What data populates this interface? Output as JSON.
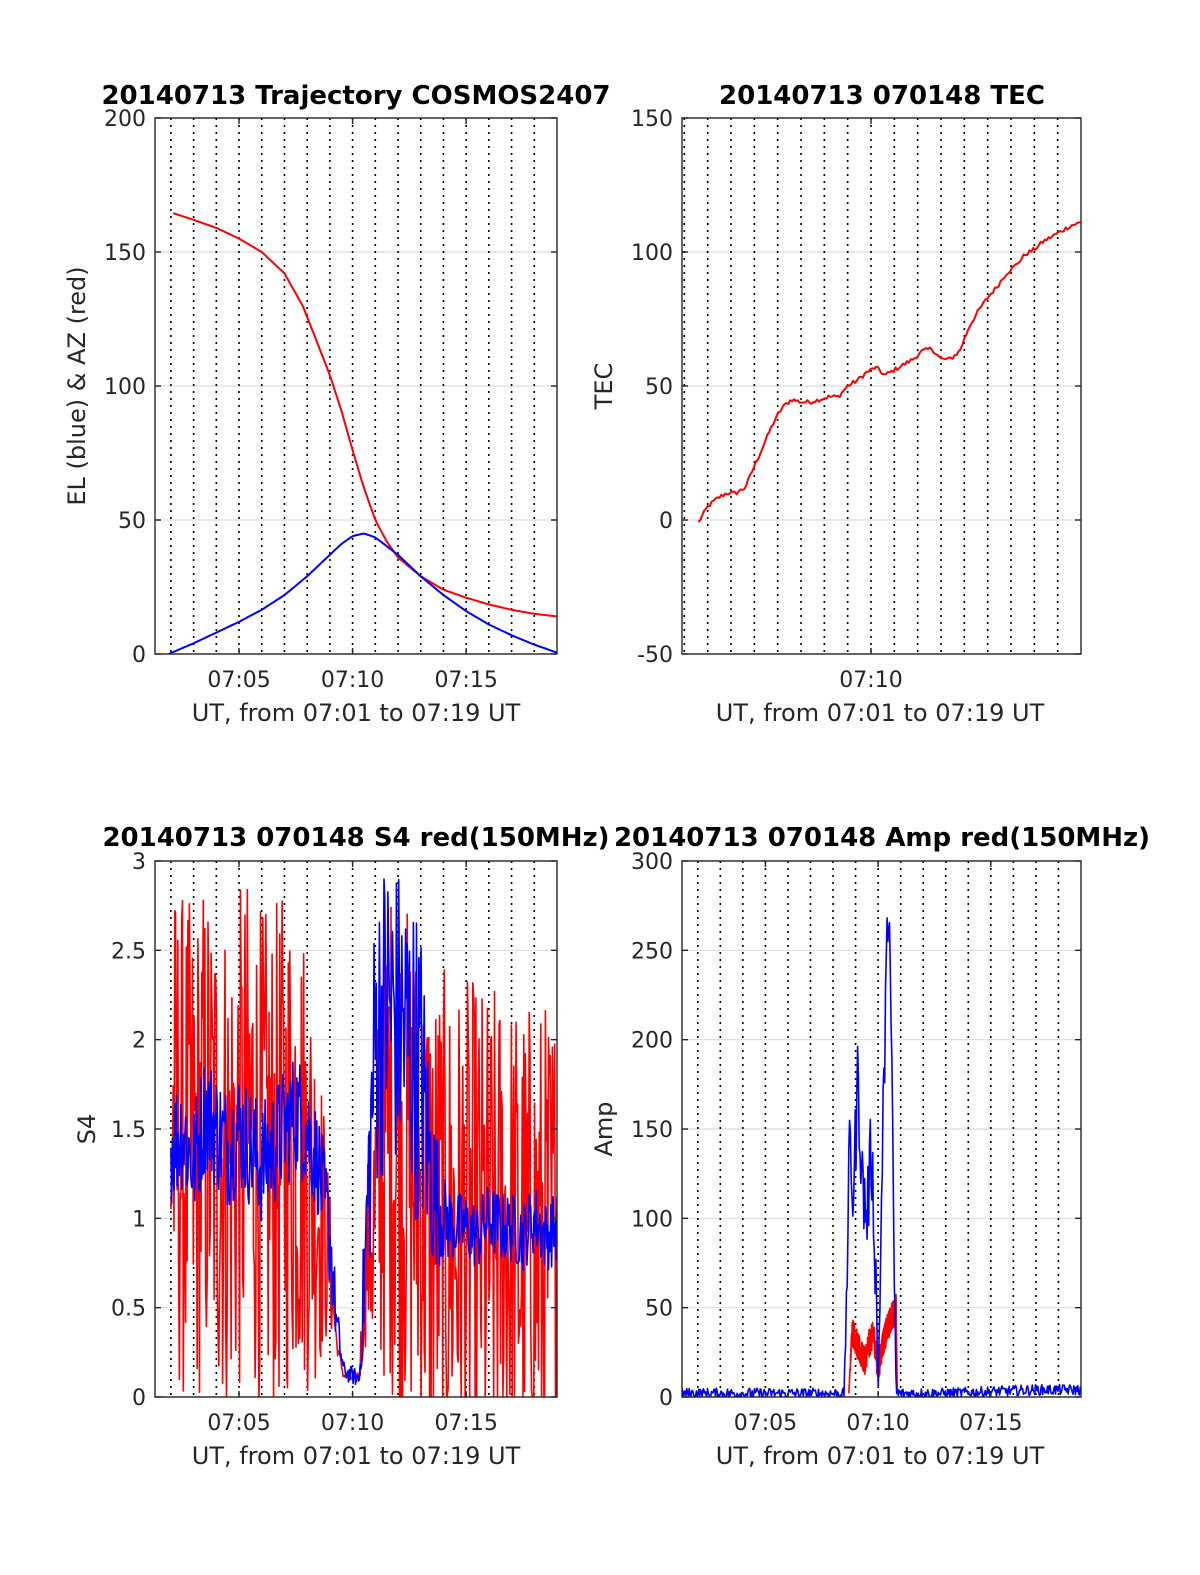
{
  "figure": {
    "background": "#ffffff",
    "grid_color": "#dcdcdc",
    "vline_style": "black-dotted",
    "colors": {
      "red": "#ff0000",
      "blue": "#0000ff"
    }
  },
  "chart_data": [
    {
      "type": "line",
      "title": "20140713 Trajectory COSMOS2407",
      "xlabel": "UT, from 07:01 to 07:19 UT",
      "ylabel": "EL (blue) & AZ (red)",
      "xlim": [
        1.3,
        19.0
      ],
      "ylim": [
        0,
        200
      ],
      "xticks": [
        5,
        10,
        15
      ],
      "xtick_labels": [
        "07:05",
        "07:10",
        "07:15"
      ],
      "yticks": [
        0,
        50,
        100,
        150,
        200
      ],
      "ytick_labels": [
        "0",
        "50",
        "100",
        "150",
        "200"
      ],
      "vlines_every_minute": [
        2,
        18
      ],
      "series": [
        {
          "color": "#ff0000",
          "x": [
            2.1,
            3,
            4,
            5,
            6,
            7,
            7.8,
            8.5,
            9,
            9.5,
            10,
            10.5,
            11,
            11.5,
            12,
            13,
            14,
            15,
            16,
            17,
            18,
            19
          ],
          "y": [
            164.5,
            162,
            159,
            155,
            150,
            142,
            130,
            115,
            104,
            91,
            76,
            62,
            50,
            42,
            36,
            29,
            24,
            21,
            18.5,
            16.5,
            15,
            14
          ]
        },
        {
          "color": "#0000ff",
          "x": [
            1.9,
            3,
            4,
            5,
            6,
            7,
            8,
            9,
            9.5,
            10,
            10.5,
            11,
            12,
            13,
            14,
            15,
            16,
            17,
            18,
            19
          ],
          "y": [
            0,
            4,
            8,
            12,
            16.5,
            22,
            29,
            37,
            41,
            44,
            45,
            43.5,
            37,
            29,
            22,
            16,
            11,
            7,
            3.5,
            0.5
          ]
        }
      ]
    },
    {
      "type": "line",
      "title": "20140713 070148 TEC",
      "xlabel": "UT, from 07:01 to 07:19 UT",
      "ylabel": "TEC",
      "xlim": [
        1.9,
        19.0
      ],
      "ylim": [
        -50,
        150
      ],
      "xticks": [
        10
      ],
      "xtick_labels": [
        "07:10"
      ],
      "yticks": [
        -50,
        0,
        50,
        100,
        150
      ],
      "ytick_labels": [
        "-50",
        "0",
        "50",
        "100",
        "150"
      ],
      "vlines_every_minute": [
        2,
        18
      ],
      "series": [
        {
          "color": "#ff0000",
          "x": [
            2.6,
            3,
            3.4,
            3.8,
            4.2,
            4.6,
            5,
            5.4,
            5.8,
            6.2,
            6.6,
            7,
            7.4,
            7.8,
            8.2,
            8.6,
            9,
            9.4,
            9.8,
            10.2,
            10.6,
            11,
            11.4,
            11.8,
            12.2,
            12.6,
            13,
            13.4,
            13.8,
            14.2,
            14.6,
            15,
            15.4,
            15.8,
            16.2,
            16.6,
            17,
            17.4,
            17.8,
            18.2,
            18.6,
            19
          ],
          "y": [
            -1,
            5,
            8,
            10,
            10,
            12,
            20,
            28,
            36,
            42,
            45,
            44,
            44,
            45,
            46,
            46,
            50,
            52,
            55,
            57,
            54,
            56,
            58,
            60,
            63,
            64,
            60,
            60,
            63,
            72,
            78,
            83,
            87,
            92,
            95,
            99,
            101,
            104,
            106,
            108,
            110,
            111
          ]
        }
      ]
    },
    {
      "type": "line",
      "title": "20140713 070148 S4 red(150MHz)",
      "xlabel": "UT, from 07:01 to 07:19 UT",
      "ylabel": "S4",
      "xlim": [
        1.3,
        19.0
      ],
      "ylim": [
        0,
        3
      ],
      "xticks": [
        5,
        10,
        15
      ],
      "xtick_labels": [
        "07:05",
        "07:10",
        "07:15"
      ],
      "yticks": [
        0,
        0.5,
        1,
        1.5,
        2,
        2.5,
        3
      ],
      "ytick_labels": [
        "0",
        "0.5",
        "1",
        "1.5",
        "2",
        "2.5",
        "3"
      ],
      "vlines_every_minute": [
        2,
        18
      ],
      "series": [
        {
          "color": "#ff0000",
          "x": [
            2.0,
            2.5,
            3,
            3.5,
            4,
            4.5,
            5,
            5.5,
            6,
            6.5,
            7,
            7.5,
            8,
            8.5,
            9.0,
            9.3,
            9.6,
            9.8,
            10.0,
            10.3,
            10.6,
            11.0,
            11.5,
            12,
            12.5,
            13,
            13.5,
            14,
            14.5,
            15,
            15.5,
            16,
            16.5,
            17,
            17.5,
            18,
            18.5,
            19.0
          ],
          "y": [
            1.5,
            1.4,
            1.3,
            1.5,
            1.4,
            1.3,
            1.4,
            1.5,
            1.3,
            1.3,
            1.4,
            1.5,
            1.3,
            1.1,
            0.75,
            0.3,
            0.12,
            0.12,
            0.1,
            0.12,
            0.8,
            1.0,
            1.5,
            1.4,
            1.3,
            1.1,
            1.0,
            0.95,
            0.9,
            0.9,
            0.9,
            0.85,
            0.9,
            0.85,
            0.8,
            0.8,
            0.8,
            0.85
          ],
          "noise": [
            1.45,
            1.45,
            1.45,
            1.45,
            1.45,
            1.45,
            1.45,
            1.45,
            1.45,
            1.45,
            1.45,
            1.45,
            1.3,
            1.0,
            0.4,
            0.05,
            0.02,
            0.02,
            0.02,
            0.05,
            0.5,
            1.0,
            1.45,
            1.45,
            1.45,
            1.45,
            1.45,
            1.45,
            1.45,
            1.45,
            1.45,
            1.45,
            1.45,
            1.45,
            1.45,
            1.45,
            1.45,
            1.45
          ]
        },
        {
          "color": "#0000ff",
          "x": [
            2.0,
            2.5,
            3,
            3.5,
            4,
            4.5,
            5,
            5.5,
            6,
            6.5,
            7,
            7.5,
            8,
            8.5,
            9.0,
            9.3,
            9.6,
            9.8,
            10.0,
            10.3,
            10.6,
            11.0,
            11.5,
            12,
            12.5,
            13,
            13.5,
            14,
            14.5,
            15,
            15.5,
            16,
            16.5,
            17,
            17.5,
            18,
            18.5,
            19.0
          ],
          "y": [
            1.4,
            1.5,
            1.3,
            1.6,
            1.5,
            1.4,
            1.5,
            1.4,
            1.3,
            1.4,
            1.5,
            1.6,
            1.5,
            1.3,
            0.9,
            0.4,
            0.15,
            0.13,
            0.12,
            0.1,
            0.9,
            2.0,
            2.2,
            2.1,
            2.0,
            1.8,
            1.2,
            1.0,
            0.95,
            0.95,
            0.9,
            1.0,
            0.95,
            0.95,
            0.9,
            1.0,
            0.9,
            0.95
          ],
          "noise": [
            0.35,
            0.35,
            0.35,
            0.35,
            0.35,
            0.35,
            0.35,
            0.35,
            0.35,
            0.35,
            0.35,
            0.35,
            0.35,
            0.3,
            0.3,
            0.15,
            0.05,
            0.05,
            0.05,
            0.05,
            0.5,
            0.9,
            0.9,
            0.9,
            0.9,
            0.9,
            0.5,
            0.25,
            0.2,
            0.2,
            0.2,
            0.2,
            0.2,
            0.2,
            0.2,
            0.2,
            0.2,
            0.2
          ]
        }
      ]
    },
    {
      "type": "line",
      "title": "20140713 070148 Amp red(150MHz)",
      "xlabel": "UT, from 07:01 to 07:19 UT",
      "ylabel": "Amp",
      "xlim": [
        1.3,
        19.0
      ],
      "ylim": [
        0,
        300
      ],
      "xticks": [
        5,
        10,
        15
      ],
      "xtick_labels": [
        "07:05",
        "07:10",
        "07:15"
      ],
      "yticks": [
        0,
        50,
        100,
        150,
        200,
        250,
        300
      ],
      "ytick_labels": [
        "0",
        "50",
        "100",
        "150",
        "200",
        "250",
        "300"
      ],
      "vlines_every_minute": [
        2,
        18
      ],
      "series": [
        {
          "color": "#ff0000",
          "x": [
            8.7,
            8.85,
            9.0,
            9.2,
            9.4,
            9.6,
            9.8,
            10.0,
            10.2,
            10.4,
            10.6,
            10.8,
            10.85
          ],
          "y": [
            2,
            38,
            32,
            25,
            20,
            30,
            35,
            15,
            30,
            38,
            45,
            50,
            3
          ],
          "noise": [
            0,
            8,
            8,
            8,
            8,
            8,
            8,
            8,
            8,
            8,
            8,
            8,
            0
          ]
        },
        {
          "color": "#0000ff",
          "x": [
            1.3,
            3,
            5,
            7,
            8.5,
            8.6,
            8.75,
            8.9,
            9.1,
            9.3,
            9.5,
            9.7,
            9.9,
            10.0,
            10.2,
            10.3,
            10.4,
            10.5,
            10.6,
            10.7,
            10.8,
            11.0,
            13,
            15,
            17,
            19.0
          ],
          "y": [
            2,
            2,
            2,
            2,
            2,
            60,
            145,
            110,
            180,
            120,
            100,
            140,
            70,
            2,
            140,
            200,
            260,
            270,
            180,
            80,
            2,
            2,
            2,
            3,
            4,
            4
          ],
          "noise": [
            3,
            3,
            3,
            3,
            3,
            20,
            25,
            25,
            25,
            25,
            25,
            25,
            25,
            5,
            25,
            25,
            10,
            5,
            25,
            25,
            5,
            3,
            3,
            3,
            3,
            3
          ]
        }
      ]
    }
  ]
}
